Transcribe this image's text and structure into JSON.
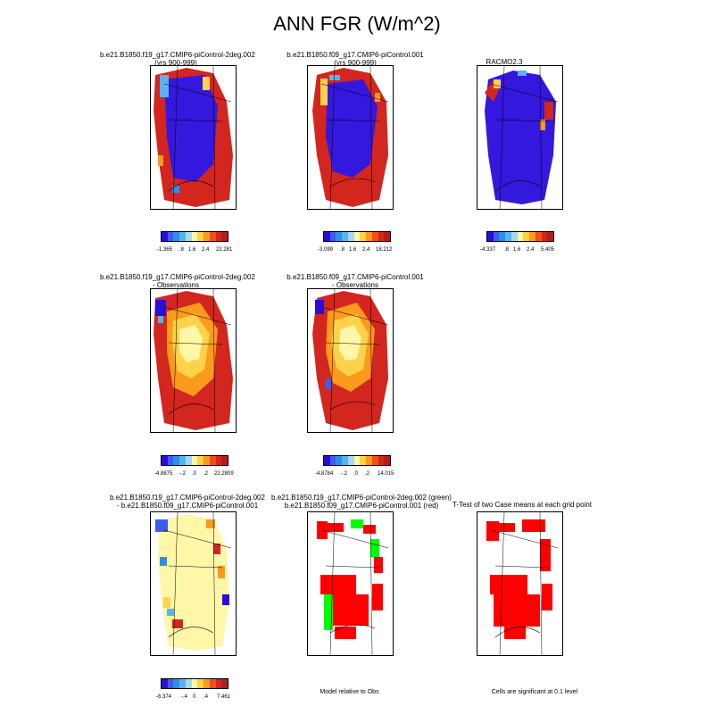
{
  "figure": {
    "title": "ANN FGR (W/m^2)"
  },
  "colors": {
    "diverging": [
      "#2a0ed6",
      "#3d5cf0",
      "#2f8ee8",
      "#58b3f2",
      "#a9d7ef",
      "#fff6a8",
      "#fed24a",
      "#fb9a1d",
      "#ef4f1f",
      "#d2261f",
      "#b31d1d"
    ],
    "fields": {
      "ocean": "#ffffff",
      "ice_cold": "#3418dd",
      "ice_warm": "#fde878",
      "ice_mid": "#fbb234",
      "margin": "#d2261f",
      "sig_red": "#ff0000",
      "sig_green": "#00ff00"
    }
  },
  "panels": [
    {
      "id": "p1",
      "title_line1": "b.e21.B1850.f19_g17.CMIP6-piControl-2deg.002",
      "title_line2": "(yrs 900-999)",
      "interior": "ice_cold",
      "colorbar_labels": [
        "-1.365",
        ".8",
        "1.6",
        "2.4",
        "22.281"
      ]
    },
    {
      "id": "p2",
      "title_line1": "b.e21.B1850.f09_g17.CMIP6-piControl.001",
      "title_line2": "(yrs 900-999)",
      "interior": "ice_cold",
      "colorbar_labels": [
        "-3.099",
        ".8",
        "1.6",
        "2.4",
        "18.212"
      ]
    },
    {
      "id": "p3",
      "title_line1": "RACMO2.3",
      "title_line2": "",
      "interior": "ice_cold",
      "colorbar_labels": [
        "-4.337",
        ".8",
        "1.6",
        "2.4",
        "5.405"
      ]
    },
    {
      "id": "p4",
      "title_line1": "b.e21.B1850.f19_g17.CMIP6-piControl-2deg.002",
      "title_line2": "- Observations",
      "interior": "ice_warm",
      "colorbar_labels": [
        "-4.8875",
        "-.2",
        ".0",
        ".2",
        "22.2809"
      ]
    },
    {
      "id": "p5",
      "title_line1": "b.e21.B1850.f09_g17.CMIP6-piControl.001",
      "title_line2": "- Observations",
      "interior": "ice_warm",
      "colorbar_labels": [
        "-4.8784",
        "-.2",
        ".0",
        ".2",
        "14.015"
      ]
    },
    {
      "id": "p7",
      "title_line1": "b.e21.B1850.f19_g17.CMIP6-piControl-2deg.002",
      "title_line2": "- b.e21.B1850.f09_g17.CMIP6-piControl.001",
      "interior": "ice_pale",
      "colorbar_labels": [
        "-6.374",
        "-.4",
        "0",
        ".4",
        "7.461"
      ]
    },
    {
      "id": "p8",
      "title_line1": "b.e21.B1850.f19_g17.CMIP6-piControl-2deg.002 (green)",
      "title_line2": "b.e21.B1850.f09_g17.CMIP6-piControl.001 (red)",
      "interior": "sig",
      "caption": "Model relative to Obs"
    },
    {
      "id": "p9",
      "title_line1": "T-Test of two Case means at each grid point",
      "title_line2": "",
      "interior": "sig",
      "caption": "Cells are significant at 0.1 level"
    }
  ]
}
